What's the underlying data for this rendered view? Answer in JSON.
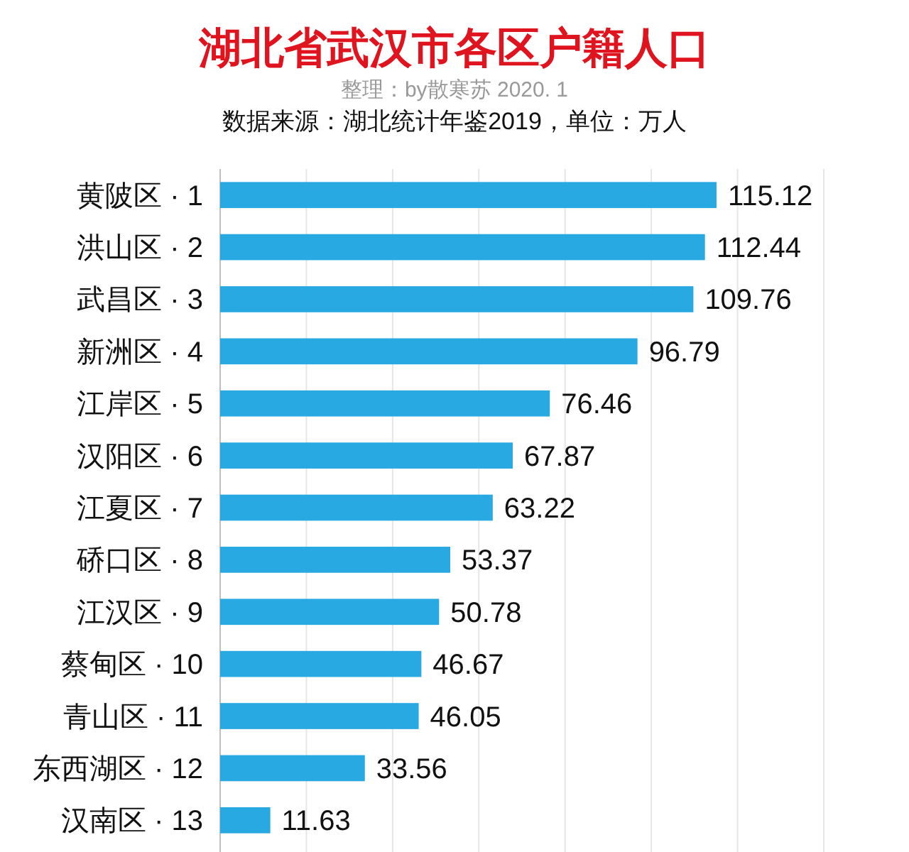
{
  "chart_data": {
    "type": "bar",
    "orientation": "horizontal",
    "title": "湖北省武汉市各区户籍人口",
    "subtitle": "整理：by散寒苏  2020. 1",
    "annotations": [
      "数据来源：湖北统计年鉴2019，单位：万人"
    ],
    "categories": [
      "黄陂区 · 1",
      "洪山区 · 2",
      "武昌区 · 3",
      "新洲区 · 4",
      "江岸区 · 5",
      "汉阳区 · 6",
      "江夏区 · 7",
      "硚口区 · 8",
      "江汉区 · 9",
      "蔡甸区 · 10",
      "青山区 · 11",
      "东西湖区 · 12",
      "汉南区 · 13"
    ],
    "values": [
      115.12,
      112.44,
      109.76,
      96.79,
      76.46,
      67.87,
      63.22,
      53.37,
      50.78,
      46.67,
      46.05,
      33.56,
      11.63
    ],
    "color": "#29a9e1",
    "data_labels": true,
    "xlim": [
      0,
      140
    ],
    "xticks": [
      {
        "value": 0,
        "label": null
      },
      {
        "value": 20,
        "label": null
      },
      {
        "value": 40,
        "label": null
      },
      {
        "value": 60,
        "label": null
      },
      {
        "value": 80,
        "label": null
      },
      {
        "value": 100,
        "label": null
      },
      {
        "value": 120,
        "label": null
      },
      {
        "value": 140,
        "label": null
      }
    ],
    "tick_labels": "y",
    "grid": "x"
  }
}
